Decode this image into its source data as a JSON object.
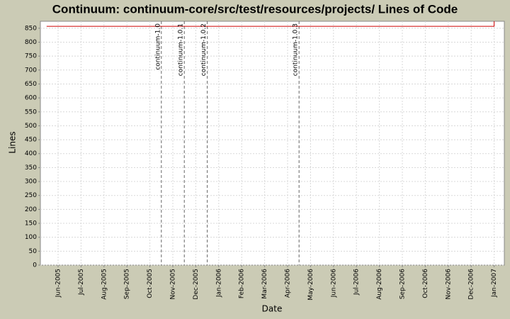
{
  "chart_data": {
    "type": "line",
    "title": "Continuum: continuum-core/src/test/resources/projects/ Lines of Code",
    "x_label": "Date",
    "y_label": "Lines",
    "x": [
      "May-2005",
      "Jan-2007",
      "Jan-2007"
    ],
    "series": [
      {
        "color": "#cc0000",
        "values": [
          857,
          857,
          875
        ]
      }
    ],
    "ylim": [
      0,
      875
    ],
    "yticks": [
      0,
      50,
      100,
      150,
      200,
      250,
      300,
      350,
      400,
      450,
      500,
      550,
      600,
      650,
      700,
      750,
      800,
      850
    ],
    "xticks": [
      "Jun-2005",
      "Jul-2005",
      "Aug-2005",
      "Sep-2005",
      "Oct-2005",
      "Nov-2005",
      "Dec-2005",
      "Jan-2006",
      "Feb-2006",
      "Mar-2006",
      "Apr-2006",
      "May-2006",
      "Jun-2006",
      "Jul-2006",
      "Aug-2006",
      "Sep-2006",
      "Oct-2006",
      "Nov-2006",
      "Dec-2006",
      "Jan-2007"
    ],
    "markers": [
      {
        "x": "Oct-2005",
        "label": "continuum-1.0"
      },
      {
        "x": "Nov-2005",
        "label": "continuum-1.0.1"
      },
      {
        "x": "Dec-2005",
        "label": "continuum-1.0.2"
      },
      {
        "x": "Apr-2006",
        "label": "continuum-1.0.3"
      }
    ],
    "grid": true
  }
}
